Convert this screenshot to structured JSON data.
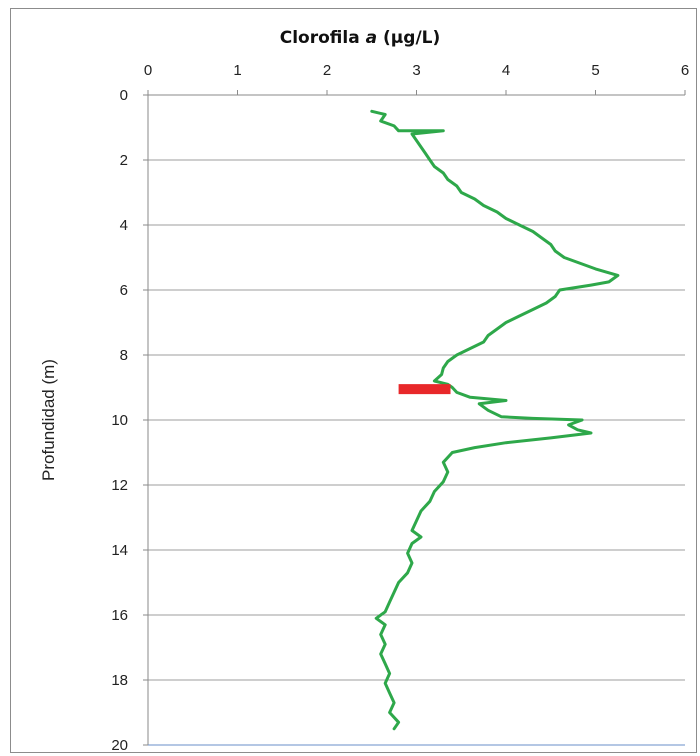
{
  "chart_data": {
    "type": "line",
    "title": "Clorofila",
    "title_italic": "a",
    "title_unit": "(µg/L)",
    "xlabel": "",
    "ylabel": "Profundidad (m)",
    "xlim": [
      0,
      6
    ],
    "ylim": [
      20,
      0
    ],
    "x_axis_position": "top",
    "y_inverted": true,
    "grid": true,
    "legend": "none",
    "x_ticks": [
      "0",
      "1",
      "2",
      "3",
      "4",
      "5",
      "6"
    ],
    "y_ticks": [
      "0",
      "2",
      "4",
      "6",
      "8",
      "10",
      "12",
      "14",
      "16",
      "18",
      "20"
    ],
    "series": [
      {
        "color": "#2ea84a",
        "points": [
          [
            2.5,
            0.5
          ],
          [
            2.65,
            0.6
          ],
          [
            2.6,
            0.8
          ],
          [
            2.75,
            0.95
          ],
          [
            2.8,
            1.1
          ],
          [
            3.3,
            1.1
          ],
          [
            2.95,
            1.2
          ],
          [
            3.0,
            1.4
          ],
          [
            3.05,
            1.6
          ],
          [
            3.1,
            1.8
          ],
          [
            3.15,
            2.0
          ],
          [
            3.2,
            2.2
          ],
          [
            3.3,
            2.4
          ],
          [
            3.35,
            2.6
          ],
          [
            3.45,
            2.8
          ],
          [
            3.5,
            3.0
          ],
          [
            3.65,
            3.2
          ],
          [
            3.75,
            3.4
          ],
          [
            3.9,
            3.6
          ],
          [
            4.0,
            3.8
          ],
          [
            4.15,
            4.0
          ],
          [
            4.3,
            4.2
          ],
          [
            4.4,
            4.4
          ],
          [
            4.5,
            4.6
          ],
          [
            4.55,
            4.8
          ],
          [
            4.65,
            5.0
          ],
          [
            4.85,
            5.2
          ],
          [
            5.0,
            5.35
          ],
          [
            5.25,
            5.55
          ],
          [
            5.15,
            5.75
          ],
          [
            4.95,
            5.85
          ],
          [
            4.6,
            6.0
          ],
          [
            4.55,
            6.2
          ],
          [
            4.45,
            6.4
          ],
          [
            4.3,
            6.6
          ],
          [
            4.15,
            6.8
          ],
          [
            4.0,
            7.0
          ],
          [
            3.9,
            7.2
          ],
          [
            3.8,
            7.4
          ],
          [
            3.75,
            7.6
          ],
          [
            3.6,
            7.8
          ],
          [
            3.45,
            8.0
          ],
          [
            3.35,
            8.2
          ],
          [
            3.3,
            8.4
          ],
          [
            3.28,
            8.6
          ],
          [
            3.2,
            8.8
          ],
          [
            3.35,
            8.9
          ],
          [
            3.4,
            9.0
          ],
          [
            3.45,
            9.15
          ],
          [
            3.6,
            9.3
          ],
          [
            4.0,
            9.4
          ],
          [
            3.7,
            9.5
          ],
          [
            3.8,
            9.7
          ],
          [
            3.95,
            9.9
          ],
          [
            4.3,
            9.95
          ],
          [
            4.85,
            10.0
          ],
          [
            4.7,
            10.15
          ],
          [
            4.8,
            10.3
          ],
          [
            4.95,
            10.4
          ],
          [
            4.5,
            10.55
          ],
          [
            4.0,
            10.7
          ],
          [
            3.65,
            10.85
          ],
          [
            3.4,
            11.0
          ],
          [
            3.3,
            11.3
          ],
          [
            3.35,
            11.6
          ],
          [
            3.3,
            11.9
          ],
          [
            3.2,
            12.2
          ],
          [
            3.15,
            12.5
          ],
          [
            3.05,
            12.8
          ],
          [
            3.0,
            13.1
          ],
          [
            2.95,
            13.4
          ],
          [
            3.05,
            13.6
          ],
          [
            2.95,
            13.8
          ],
          [
            2.9,
            14.1
          ],
          [
            2.95,
            14.4
          ],
          [
            2.9,
            14.7
          ],
          [
            2.8,
            15.0
          ],
          [
            2.75,
            15.3
          ],
          [
            2.7,
            15.6
          ],
          [
            2.65,
            15.9
          ],
          [
            2.55,
            16.1
          ],
          [
            2.65,
            16.3
          ],
          [
            2.6,
            16.6
          ],
          [
            2.65,
            16.9
          ],
          [
            2.6,
            17.2
          ],
          [
            2.65,
            17.5
          ],
          [
            2.7,
            17.8
          ],
          [
            2.65,
            18.1
          ],
          [
            2.7,
            18.4
          ],
          [
            2.75,
            18.7
          ],
          [
            2.7,
            19.0
          ],
          [
            2.8,
            19.3
          ],
          [
            2.75,
            19.5
          ]
        ]
      }
    ],
    "annotations": [
      {
        "type": "bar",
        "color": "#e8282a",
        "x_range": [
          2.8,
          3.38
        ],
        "y": 9.05
      }
    ]
  }
}
